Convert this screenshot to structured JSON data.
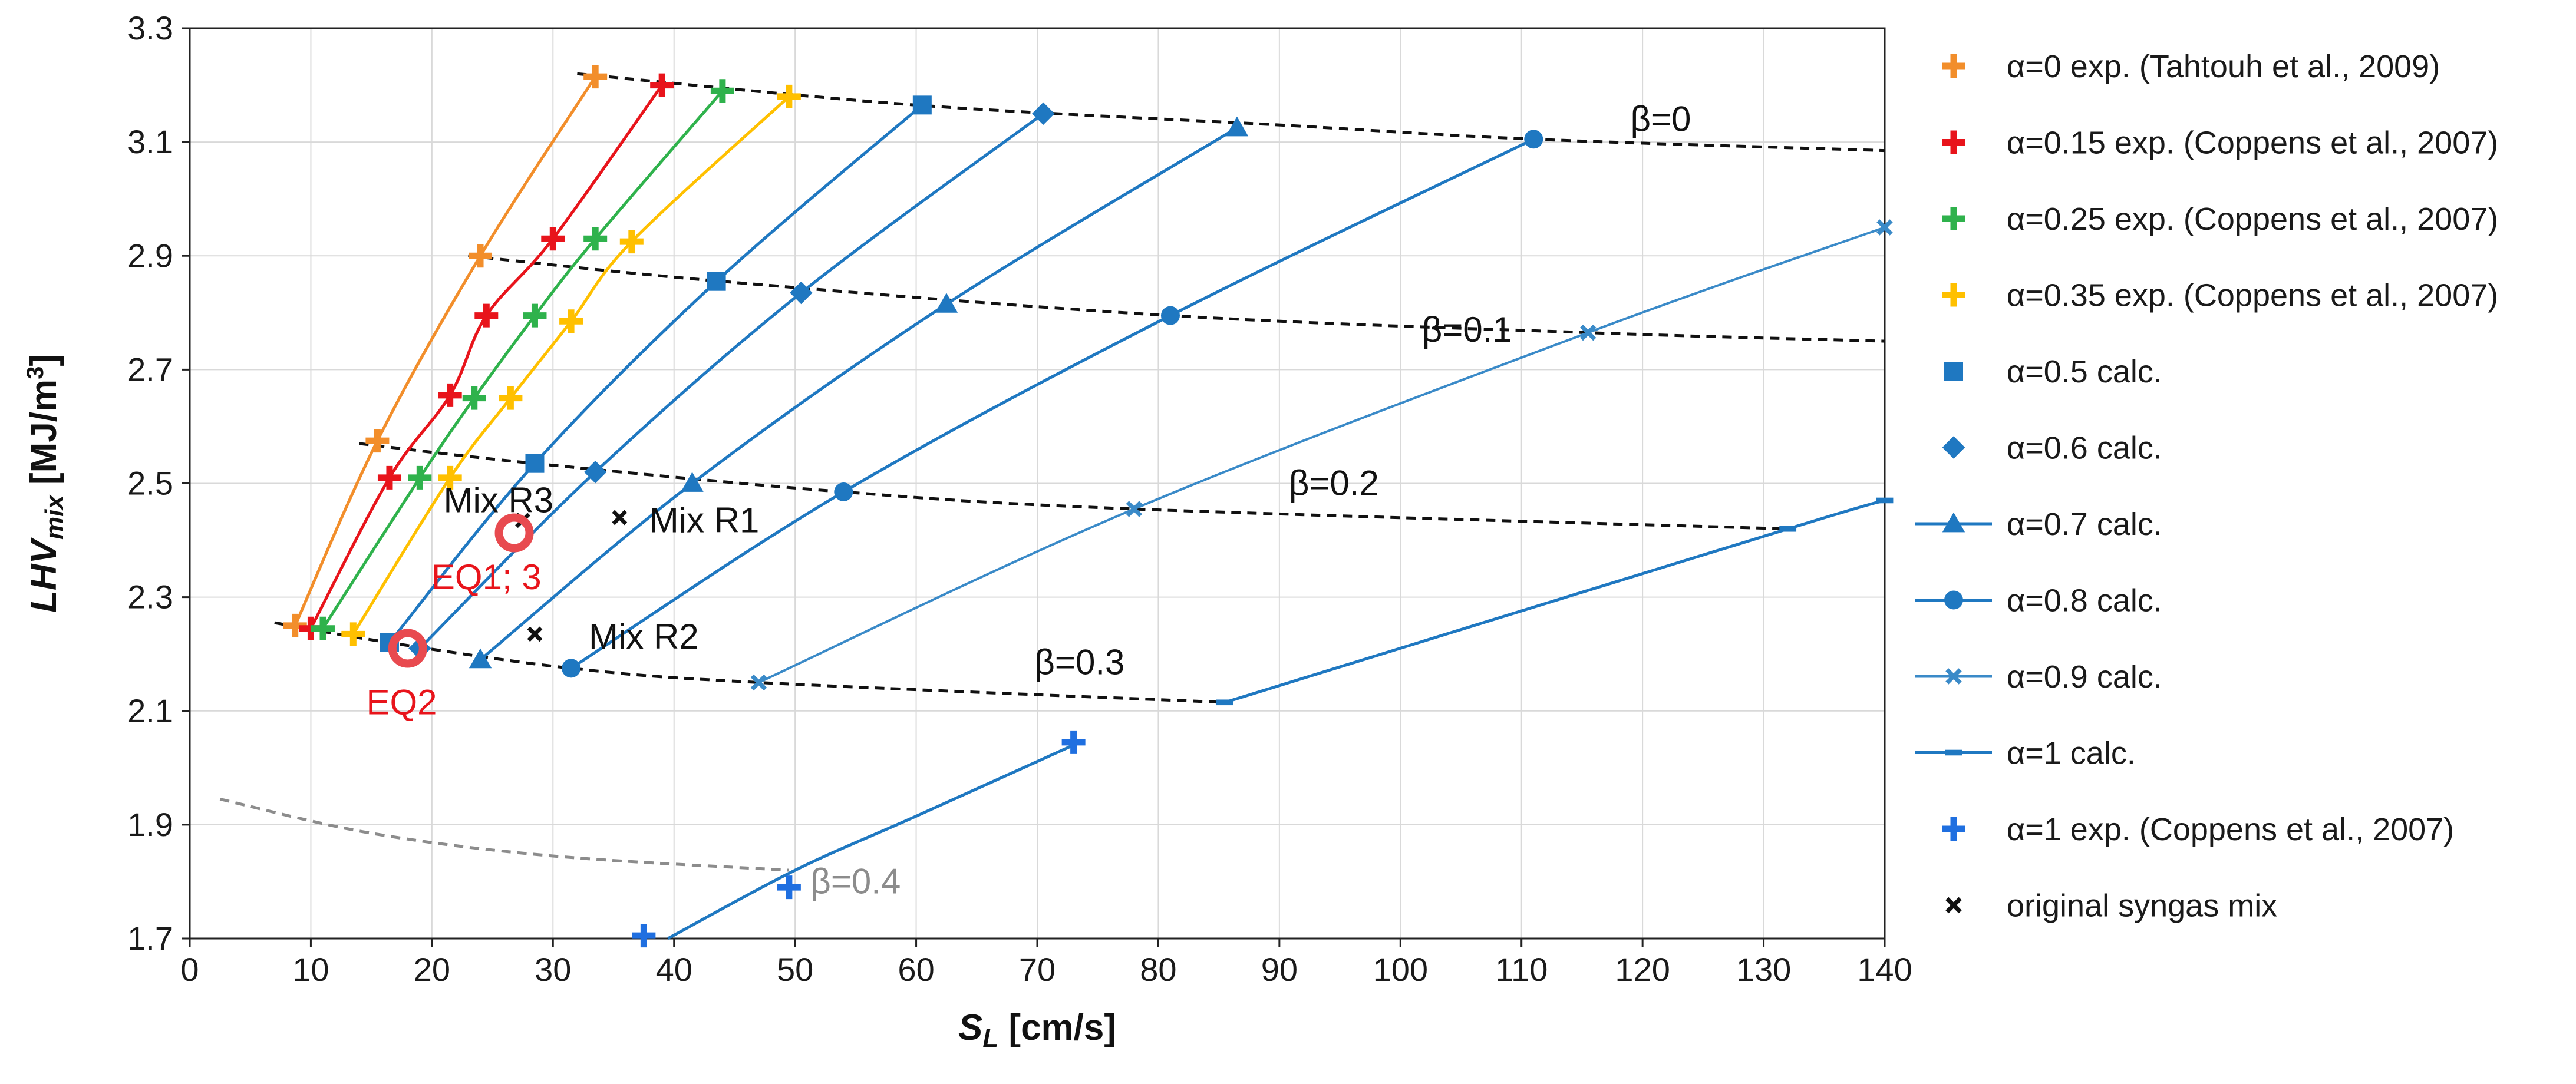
{
  "chart_data": {
    "type": "line",
    "title": "",
    "xlabel": {
      "main": "S",
      "sub": "L",
      "unit": " [cm/s]"
    },
    "ylabel": {
      "main": "LHV",
      "sub": "mix",
      "unit_pre": " [MJ/m",
      "unit_sup": "3",
      "unit_post": "]"
    },
    "xlim": [
      0,
      140
    ],
    "ylim": [
      1.7,
      3.3
    ],
    "xticks": [
      0,
      10,
      20,
      30,
      40,
      50,
      60,
      70,
      80,
      90,
      100,
      110,
      120,
      130,
      140
    ],
    "yticks": [
      "1.7",
      "1.9",
      "2.1",
      "2.3",
      "2.5",
      "2.7",
      "2.9",
      "3.1",
      "3.3"
    ],
    "grid": true,
    "legend_position": "right",
    "series": [
      {
        "name": "α=0 exp. (Tahtouh et al., 2009)",
        "color": "#f28e2b",
        "marker": "cross",
        "line": true,
        "points": [
          [
            8.7,
            2.25
          ],
          [
            15.5,
            2.575
          ],
          [
            24.0,
            2.9
          ],
          [
            33.5,
            3.215
          ]
        ]
      },
      {
        "name": "α=0.15 exp. (Coppens et al., 2007)",
        "color": "#e8141b",
        "marker": "cross",
        "line": true,
        "points": [
          [
            10.0,
            2.245
          ],
          [
            16.5,
            2.51
          ],
          [
            21.5,
            2.655
          ],
          [
            24.5,
            2.795
          ],
          [
            30.0,
            2.93
          ],
          [
            39.0,
            3.2
          ]
        ]
      },
      {
        "name": "α=0.25 exp. (Coppens et al., 2007)",
        "color": "#2fb24c",
        "marker": "cross",
        "line": true,
        "points": [
          [
            11.0,
            2.245
          ],
          [
            19.0,
            2.51
          ],
          [
            23.5,
            2.65
          ],
          [
            28.5,
            2.795
          ],
          [
            33.5,
            2.93
          ],
          [
            44.0,
            3.19
          ]
        ]
      },
      {
        "name": "α=0.35 exp. (Coppens et al., 2007)",
        "color": "#ffc000",
        "marker": "cross",
        "line": true,
        "points": [
          [
            13.5,
            2.235
          ],
          [
            21.5,
            2.51
          ],
          [
            26.5,
            2.65
          ],
          [
            31.5,
            2.785
          ],
          [
            36.5,
            2.925
          ],
          [
            49.5,
            3.18
          ]
        ]
      },
      {
        "name": "α=0.5 calc.",
        "color": "#1f78c1",
        "marker": "square",
        "line": true,
        "points": [
          [
            16.5,
            2.22
          ],
          [
            28.5,
            2.535
          ],
          [
            43.5,
            2.855
          ],
          [
            60.5,
            3.165
          ]
        ]
      },
      {
        "name": "α=0.6 calc.",
        "color": "#1f78c1",
        "marker": "diamond",
        "line": true,
        "points": [
          [
            19.0,
            2.21
          ],
          [
            33.5,
            2.52
          ],
          [
            50.5,
            2.835
          ],
          [
            70.5,
            3.15
          ]
        ]
      },
      {
        "name": "α=0.7 calc.",
        "color": "#1f78c1",
        "marker": "triangle",
        "line": true,
        "points": [
          [
            24.0,
            2.19
          ],
          [
            41.5,
            2.5
          ],
          [
            62.5,
            2.815
          ],
          [
            86.5,
            3.125
          ]
        ]
      },
      {
        "name": "α=0.8 calc.",
        "color": "#1f78c1",
        "marker": "circle",
        "line": true,
        "points": [
          [
            31.5,
            2.175
          ],
          [
            54.0,
            2.485
          ],
          [
            81.0,
            2.795
          ],
          [
            111.0,
            3.105
          ]
        ]
      },
      {
        "name": "α=0.9 calc.",
        "color": "#3a8ac8",
        "marker": "x",
        "line": true,
        "points": [
          [
            47.0,
            2.15
          ],
          [
            78.0,
            2.455
          ],
          [
            115.5,
            2.765
          ],
          [
            140.0,
            2.95
          ]
        ]
      },
      {
        "name": "α=1    calc.",
        "color": "#1f78c1",
        "marker": "dash",
        "line": true,
        "points": [
          [
            85.5,
            2.115
          ],
          [
            132.0,
            2.42
          ],
          [
            140.0,
            2.47
          ]
        ]
      },
      {
        "name": "α=1 exp. (Coppens et al., 2007)",
        "color": "#1f6fe0",
        "marker": "cross",
        "line": false,
        "points": [
          [
            37.5,
            1.705
          ],
          [
            49.5,
            1.79
          ],
          [
            73.0,
            2.045
          ]
        ]
      },
      {
        "name": "original syngas mix",
        "color": "#111111",
        "marker": "x",
        "line": false,
        "points": [
          [
            27.5,
            2.435
          ],
          [
            35.5,
            2.44
          ],
          [
            28.5,
            2.235
          ]
        ]
      }
    ],
    "extra_lines": [
      {
        "name": "α=1 calc. lower",
        "color": "#1f78c1",
        "dashed": false,
        "points": [
          [
            39.5,
            1.7
          ],
          [
            50.0,
            1.82
          ],
          [
            60.0,
            1.915
          ],
          [
            73.0,
            2.04
          ]
        ]
      },
      {
        "name": "β=0",
        "color": "#111111",
        "dashed": true,
        "points": [
          [
            32.0,
            3.22
          ],
          [
            60.0,
            3.165
          ],
          [
            90.0,
            3.13
          ],
          [
            111.0,
            3.105
          ],
          [
            140.0,
            3.085
          ]
        ]
      },
      {
        "name": "β=0.1",
        "color": "#111111",
        "dashed": true,
        "points": [
          [
            23.0,
            2.9
          ],
          [
            44.0,
            2.855
          ],
          [
            81.0,
            2.795
          ],
          [
            115.5,
            2.765
          ],
          [
            140.0,
            2.75
          ]
        ]
      },
      {
        "name": "β=0.2",
        "color": "#111111",
        "dashed": true,
        "points": [
          [
            14.0,
            2.57
          ],
          [
            28.5,
            2.535
          ],
          [
            54.0,
            2.485
          ],
          [
            78.0,
            2.455
          ],
          [
            132.0,
            2.42
          ]
        ]
      },
      {
        "name": "β=0.3",
        "color": "#111111",
        "dashed": true,
        "points": [
          [
            7.0,
            2.255
          ],
          [
            16.5,
            2.22
          ],
          [
            31.5,
            2.175
          ],
          [
            47.0,
            2.15
          ],
          [
            85.5,
            2.115
          ]
        ]
      },
      {
        "name": "β=0.4",
        "color": "#8c8c8c",
        "dashed": true,
        "points": [
          [
            2.5,
            1.945
          ],
          [
            15.0,
            1.885
          ],
          [
            30.0,
            1.845
          ],
          [
            49.5,
            1.82
          ]
        ]
      }
    ],
    "annotations": [
      {
        "text": "β=0",
        "x": 121.5,
        "y": 3.14,
        "color": "#111111"
      },
      {
        "text": "β=0.1",
        "x": 105.5,
        "y": 2.77,
        "color": "#111111"
      },
      {
        "text": "β=0.2",
        "x": 94.5,
        "y": 2.5,
        "color": "#111111"
      },
      {
        "text": "β=0.3",
        "x": 73.5,
        "y": 2.185,
        "color": "#111111"
      },
      {
        "text": "β=0.4",
        "x": 55.0,
        "y": 1.8,
        "color": "#8c8c8c"
      },
      {
        "text": "Mix R3",
        "x": 25.5,
        "y": 2.47,
        "color": "#111111"
      },
      {
        "text": "Mix R1",
        "x": 42.5,
        "y": 2.435,
        "color": "#111111"
      },
      {
        "text": "Mix R2",
        "x": 37.5,
        "y": 2.23,
        "color": "#111111"
      },
      {
        "text": "EQ1; 3",
        "x": 24.5,
        "y": 2.335,
        "color": "#e8141b"
      },
      {
        "text": "EQ2",
        "x": 17.5,
        "y": 2.115,
        "color": "#e8141b"
      }
    ],
    "highlight_points": [
      {
        "label": "EQ1; 3",
        "x": 26.8,
        "y": 2.413,
        "color": "#e84a4f"
      },
      {
        "label": "EQ2",
        "x": 18.0,
        "y": 2.21,
        "color": "#e84a4f"
      }
    ]
  }
}
